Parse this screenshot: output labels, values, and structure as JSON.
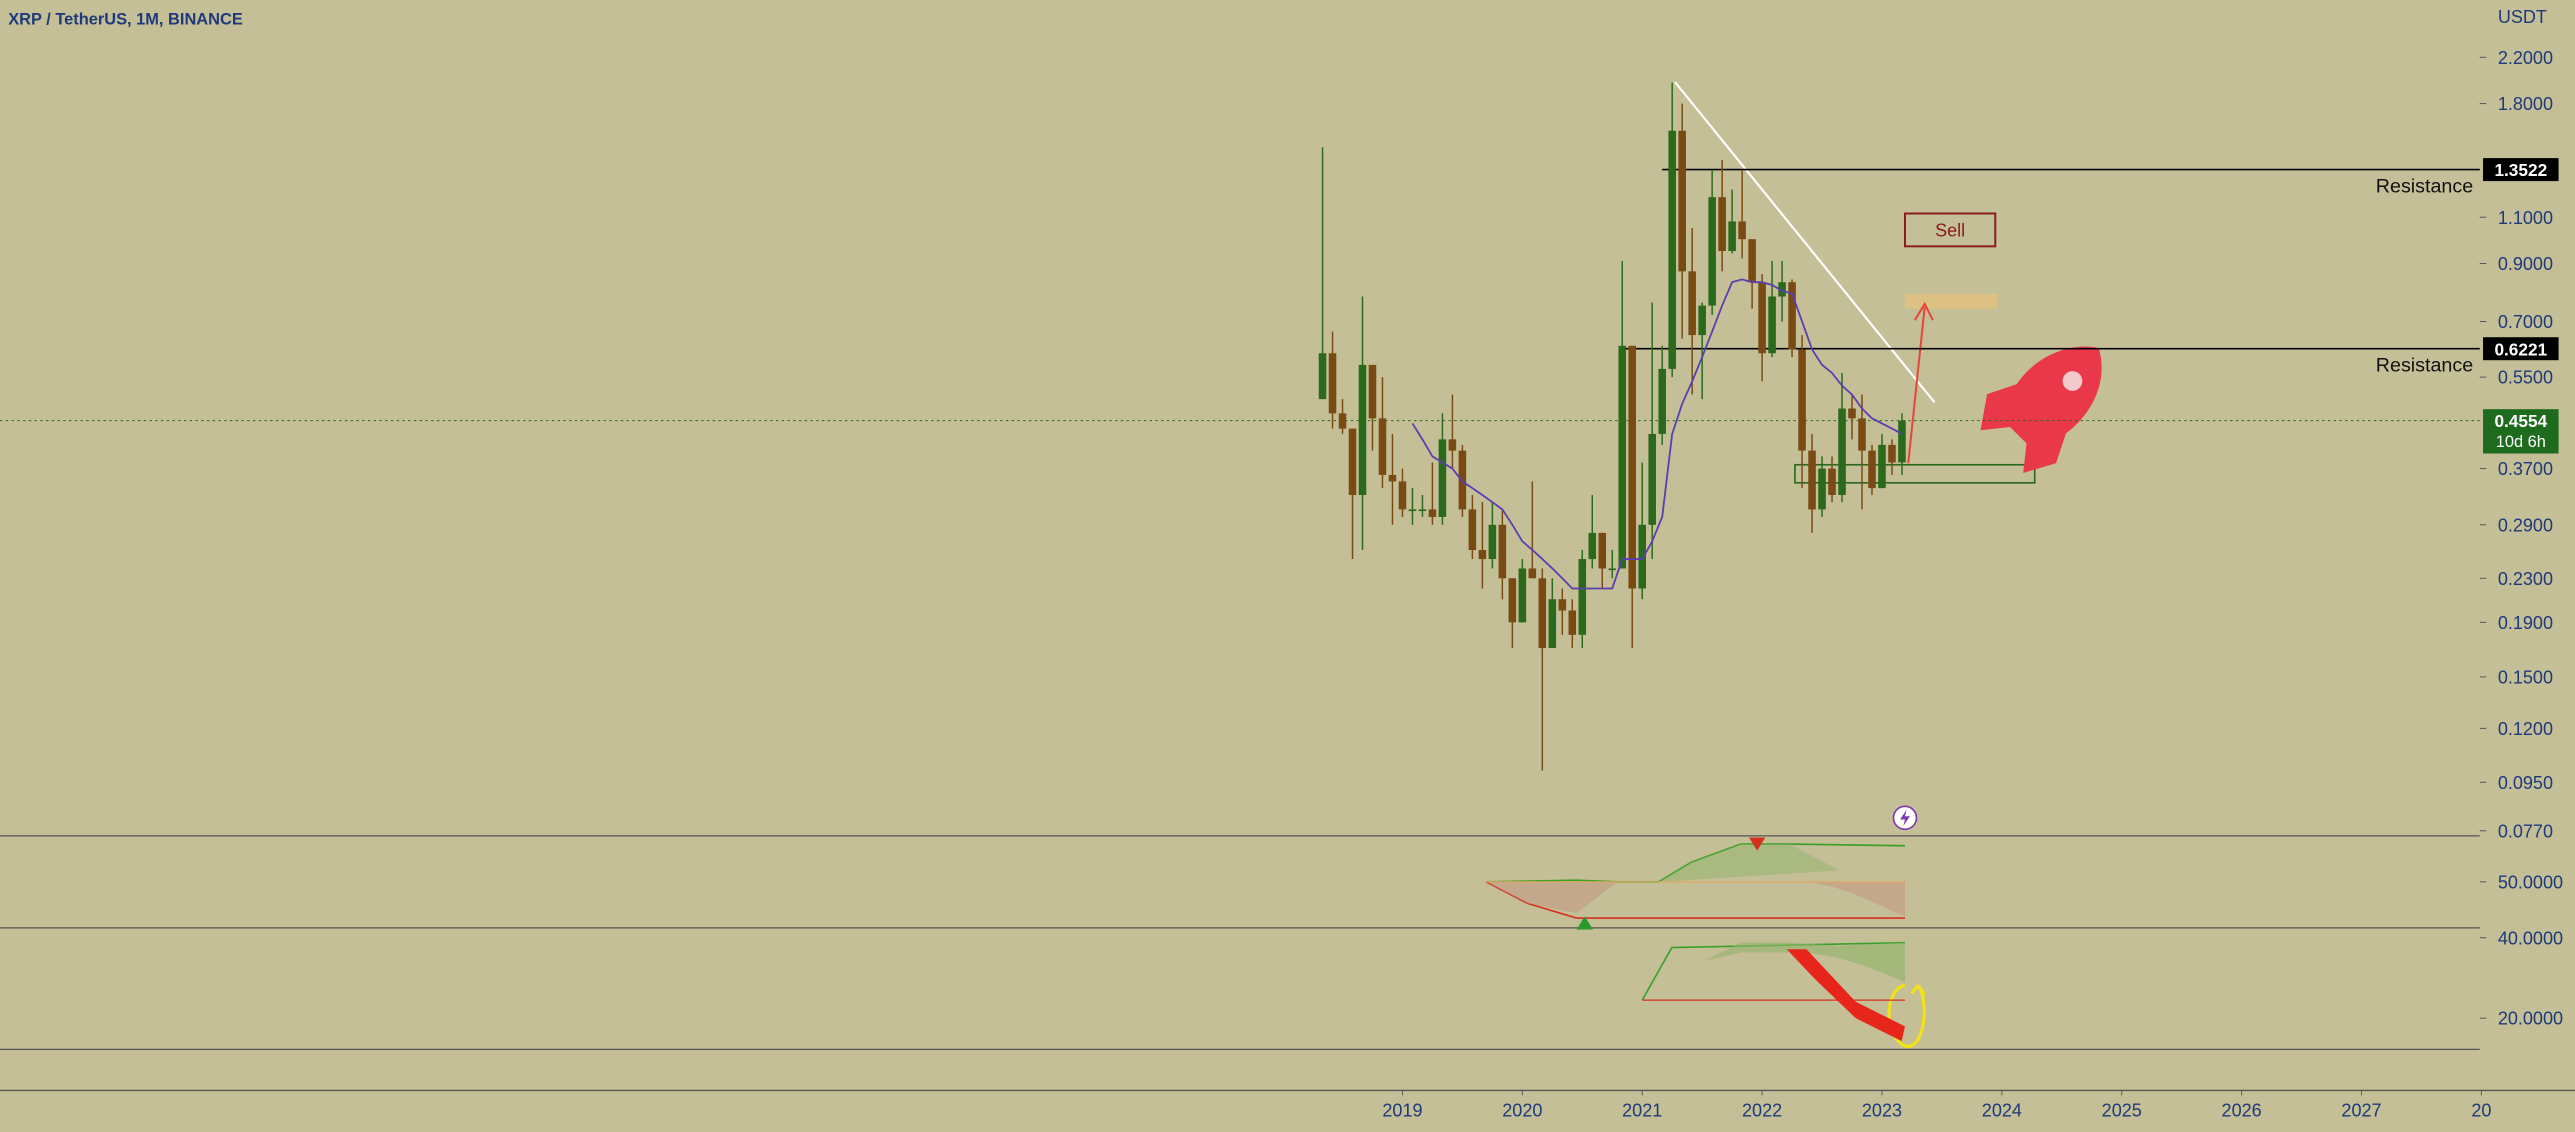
{
  "chart_data": {
    "type": "candlestick",
    "title": "XRP / TetherUS, 1M, BINANCE",
    "unit": "USDT",
    "x": [
      "2018-05",
      "2018-06",
      "2018-07",
      "2018-08",
      "2018-09",
      "2018-10",
      "2018-11",
      "2018-12",
      "2019-01",
      "2019-02",
      "2019-03",
      "2019-04",
      "2019-05",
      "2019-06",
      "2019-07",
      "2019-08",
      "2019-09",
      "2019-10",
      "2019-11",
      "2019-12",
      "2020-01",
      "2020-02",
      "2020-03",
      "2020-04",
      "2020-05",
      "2020-06",
      "2020-07",
      "2020-08",
      "2020-09",
      "2020-10",
      "2020-11",
      "2020-12",
      "2021-01",
      "2021-02",
      "2021-03",
      "2021-04",
      "2021-05",
      "2021-06",
      "2021-07",
      "2021-08",
      "2021-09",
      "2021-10",
      "2021-11",
      "2021-12",
      "2022-01",
      "2022-02",
      "2022-03",
      "2022-04",
      "2022-05",
      "2022-06",
      "2022-07",
      "2022-08",
      "2022-09",
      "2022-10",
      "2022-11",
      "2022-12",
      "2023-01",
      "2023-02",
      "2023-03"
    ],
    "open": [
      0.5,
      0.61,
      0.47,
      0.44,
      0.33,
      0.58,
      0.46,
      0.36,
      0.35,
      0.31,
      0.31,
      0.31,
      0.3,
      0.42,
      0.4,
      0.31,
      0.26,
      0.25,
      0.29,
      0.23,
      0.19,
      0.24,
      0.23,
      0.17,
      0.21,
      0.2,
      0.18,
      0.25,
      0.28,
      0.24,
      0.24,
      0.63,
      0.22,
      0.29,
      0.43,
      0.57,
      1.6,
      0.87,
      0.66,
      0.75,
      1.2,
      0.95,
      1.08,
      1.0,
      0.83,
      0.61,
      0.78,
      0.83,
      0.62,
      0.4,
      0.31,
      0.37,
      0.33,
      0.48,
      0.46,
      0.4,
      0.34,
      0.41,
      0.38
    ],
    "high": [
      1.49,
      0.67,
      0.5,
      0.44,
      0.78,
      0.58,
      0.55,
      0.43,
      0.37,
      0.34,
      0.33,
      0.38,
      0.47,
      0.51,
      0.41,
      0.33,
      0.32,
      0.32,
      0.31,
      0.23,
      0.25,
      0.35,
      0.24,
      0.23,
      0.22,
      0.21,
      0.26,
      0.33,
      0.28,
      0.26,
      0.91,
      0.63,
      0.38,
      0.76,
      0.63,
      1.97,
      1.8,
      1.05,
      0.76,
      1.35,
      1.41,
      1.24,
      1.35,
      1.0,
      0.86,
      0.91,
      0.91,
      0.84,
      0.66,
      0.43,
      0.39,
      0.39,
      0.56,
      0.51,
      0.51,
      0.41,
      0.43,
      0.42,
      0.47
    ],
    "low": [
      0.5,
      0.44,
      0.43,
      0.25,
      0.26,
      0.4,
      0.34,
      0.29,
      0.3,
      0.29,
      0.3,
      0.29,
      0.29,
      0.37,
      0.3,
      0.25,
      0.22,
      0.24,
      0.21,
      0.17,
      0.19,
      0.23,
      0.1,
      0.17,
      0.18,
      0.17,
      0.17,
      0.24,
      0.22,
      0.23,
      0.24,
      0.17,
      0.21,
      0.25,
      0.41,
      0.55,
      0.65,
      0.51,
      0.5,
      0.72,
      0.87,
      0.94,
      0.92,
      0.74,
      0.54,
      0.6,
      0.7,
      0.6,
      0.34,
      0.28,
      0.3,
      0.32,
      0.32,
      0.42,
      0.31,
      0.33,
      0.34,
      0.36,
      0.36
    ],
    "close": [
      0.61,
      0.47,
      0.44,
      0.33,
      0.58,
      0.46,
      0.36,
      0.35,
      0.31,
      0.31,
      0.31,
      0.3,
      0.42,
      0.4,
      0.31,
      0.26,
      0.25,
      0.29,
      0.23,
      0.19,
      0.24,
      0.23,
      0.17,
      0.21,
      0.2,
      0.18,
      0.25,
      0.28,
      0.24,
      0.24,
      0.63,
      0.22,
      0.29,
      0.43,
      0.57,
      1.6,
      0.87,
      0.66,
      0.75,
      1.2,
      0.95,
      1.08,
      1.0,
      0.83,
      0.61,
      0.78,
      0.83,
      0.62,
      0.4,
      0.31,
      0.37,
      0.33,
      0.48,
      0.46,
      0.4,
      0.34,
      0.41,
      0.38,
      0.4554
    ],
    "up_color": "#2b6a1c",
    "down_color": "#7a4a14",
    "ma": {
      "color": "#5b3fb0",
      "values": [
        null,
        null,
        null,
        null,
        null,
        null,
        null,
        null,
        null,
        0.45,
        0.42,
        0.39,
        0.38,
        0.37,
        0.35,
        0.34,
        0.33,
        0.32,
        0.31,
        0.29,
        0.27,
        0.26,
        0.25,
        0.24,
        0.23,
        0.22,
        0.22,
        0.22,
        0.22,
        0.22,
        0.25,
        0.25,
        0.25,
        0.27,
        0.3,
        0.43,
        0.49,
        0.54,
        0.6,
        0.67,
        0.75,
        0.83,
        0.84,
        0.83,
        0.83,
        0.82,
        0.8,
        0.79,
        0.7,
        0.62,
        0.58,
        0.56,
        0.53,
        0.51,
        0.48,
        0.46,
        0.45,
        0.44,
        0.43
      ]
    },
    "log_scale": true,
    "ylim": [
      0.0753,
      2.82
    ],
    "yticks": [
      {
        "value": 2.2,
        "label": "2.2000"
      },
      {
        "value": 1.8,
        "label": "1.8000"
      },
      {
        "value": 1.1,
        "label": "1.1000"
      },
      {
        "value": 0.9,
        "label": "0.9000"
      },
      {
        "value": 0.7,
        "label": "0.7000"
      },
      {
        "value": 0.55,
        "label": "0.5500"
      },
      {
        "value": 0.37,
        "label": "0.3700"
      },
      {
        "value": 0.29,
        "label": "0.2900"
      },
      {
        "value": 0.23,
        "label": "0.2300"
      },
      {
        "value": 0.19,
        "label": "0.1900"
      },
      {
        "value": 0.15,
        "label": "0.1500"
      },
      {
        "value": 0.12,
        "label": "0.1200"
      },
      {
        "value": 0.095,
        "label": "0.0950"
      },
      {
        "value": 0.077,
        "label": "0.0770"
      }
    ],
    "xticks": [
      {
        "value": "2019-01",
        "label": "2019"
      },
      {
        "value": "2020-01",
        "label": "2020"
      },
      {
        "value": "2021-01",
        "label": "2021"
      },
      {
        "value": "2022-01",
        "label": "2022"
      },
      {
        "value": "2023-01",
        "label": "2023"
      },
      {
        "value": "2024-01",
        "label": "2024"
      },
      {
        "value": "2025-01",
        "label": "2025"
      },
      {
        "value": "2026-01",
        "label": "2026"
      },
      {
        "value": "2027-01",
        "label": "2027"
      },
      {
        "value": "2028-01",
        "label": "20"
      }
    ],
    "annotations": [
      {
        "label": "Resistance",
        "value": 1.3522,
        "start": "2021-03"
      },
      {
        "label": "Resistance",
        "value": 0.6221,
        "start": "2020-11"
      }
    ],
    "sell_label": "Sell",
    "last_price": {
      "value": 0.4554,
      "countdown": "10d 6h"
    },
    "indicator_ticks": [
      {
        "value": 50,
        "label": "50.0000"
      }
    ],
    "indicator2_ticks": [
      {
        "value": 40,
        "label": "40.0000"
      },
      {
        "value": 20,
        "label": "20.0000"
      }
    ]
  }
}
